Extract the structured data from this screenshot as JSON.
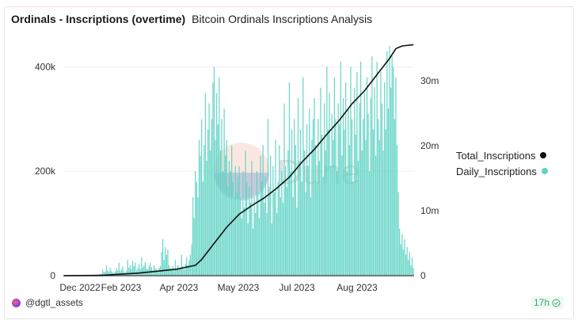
{
  "header": {
    "title": "Ordinals - Inscriptions (overtime)",
    "subtitle": "Bitcoin Ordinals Inscriptions Analysis"
  },
  "footer": {
    "author": "@dgtl_assets",
    "age": "17h",
    "status_icon": "check-circle-icon"
  },
  "watermark": "Dune",
  "chart_data": {
    "type": "bar+line",
    "title": "Ordinals - Inscriptions (overtime)",
    "x_range": [
      "2022-12-14",
      "2023-09-19"
    ],
    "frequency": "daily",
    "x_tick_labels": [
      "Dec 2022",
      "Feb 2023",
      "Apr 2023",
      "May 2023",
      "Jul 2023",
      "Aug 2023"
    ],
    "y_left": {
      "ticks": [
        0,
        200000,
        400000
      ],
      "tick_labels": [
        "0",
        "200k",
        "400k"
      ],
      "ylim": [
        0,
        440000
      ]
    },
    "y_right": {
      "ticks": [
        0,
        10000000,
        20000000,
        30000000
      ],
      "tick_labels": [
        "0",
        "10m",
        "20m",
        "30m"
      ],
      "ylim": [
        0,
        35400000
      ]
    },
    "grid": true,
    "legend_placement": "right",
    "series": [
      {
        "name": "Total_Inscriptions",
        "type": "line",
        "axis": "right",
        "color": "#111111",
        "day_index": [
          0,
          30,
          60,
          90,
          100,
          105,
          110,
          120,
          130,
          140,
          150,
          160,
          170,
          180,
          190,
          200,
          210,
          220,
          230,
          240,
          250,
          260,
          265,
          270,
          279
        ],
        "values_millions": [
          0,
          0.05,
          0.4,
          1.0,
          1.4,
          1.6,
          2.5,
          5.0,
          7.5,
          9.5,
          10.8,
          12.0,
          13.5,
          15.2,
          17.5,
          19.5,
          21.8,
          24,
          26.5,
          28.5,
          31,
          33.5,
          35,
          35.4,
          35.6
        ]
      },
      {
        "name": "Daily_Inscriptions",
        "type": "bar",
        "axis": "left",
        "color": "#5fd3c4",
        "values_thousands": [
          0,
          0,
          0,
          0,
          0,
          0,
          0,
          0,
          0,
          0,
          0,
          0,
          0,
          0,
          0,
          0,
          0,
          0,
          0,
          0,
          0,
          0,
          1,
          0,
          1,
          1,
          2,
          1,
          2,
          3,
          4,
          12,
          6,
          8,
          20,
          10,
          7,
          15,
          9,
          6,
          5,
          8,
          14,
          10,
          25,
          9,
          12,
          18,
          8,
          6,
          10,
          30,
          15,
          20,
          12,
          28,
          18,
          25,
          10,
          14,
          22,
          12,
          35,
          16,
          20,
          26,
          14,
          12,
          18,
          24,
          16,
          10,
          20,
          14,
          12,
          9,
          15,
          18,
          45,
          70,
          30,
          55,
          40,
          50,
          20,
          15,
          12,
          18,
          10,
          30,
          14,
          20,
          12,
          16,
          40,
          18,
          12,
          22,
          35,
          20,
          30,
          40,
          60,
          150,
          110,
          200,
          180,
          150,
          260,
          230,
          300,
          180,
          250,
          350,
          220,
          280,
          330,
          240,
          300,
          370,
          400,
          260,
          350,
          290,
          380,
          240,
          300,
          200,
          320,
          230,
          260,
          170,
          220,
          200,
          250,
          180,
          150,
          210,
          160,
          190,
          210,
          150,
          110,
          200,
          130,
          240,
          180,
          100,
          170,
          140,
          220,
          90,
          150,
          120,
          200,
          160,
          110,
          230,
          180,
          250,
          140,
          190,
          120,
          300,
          170,
          230,
          100,
          210,
          160,
          260,
          120,
          180,
          250,
          150,
          200,
          140,
          330,
          210,
          170,
          240,
          370,
          200,
          280,
          150,
          300,
          250,
          130,
          340,
          220,
          280,
          180,
          380,
          240,
          160,
          290,
          210,
          320,
          150,
          260,
          300,
          340,
          250,
          180,
          300,
          220,
          360,
          270,
          190,
          330,
          240,
          400,
          280,
          350,
          210,
          310,
          260,
          380,
          300,
          200,
          330,
          290,
          410,
          230,
          340,
          280,
          370,
          200,
          320,
          250,
          400,
          300,
          180,
          360,
          270,
          390,
          220,
          330,
          410,
          240,
          300,
          350,
          260,
          380,
          310,
          200,
          340,
          420,
          280,
          360,
          230,
          410,
          300,
          260,
          390,
          330,
          240,
          370,
          280,
          430,
          320,
          440,
          360,
          420,
          400,
          300,
          380,
          250,
          160,
          90,
          60,
          80,
          50,
          70,
          40,
          55,
          30,
          45,
          20,
          35,
          15
        ]
      }
    ]
  }
}
